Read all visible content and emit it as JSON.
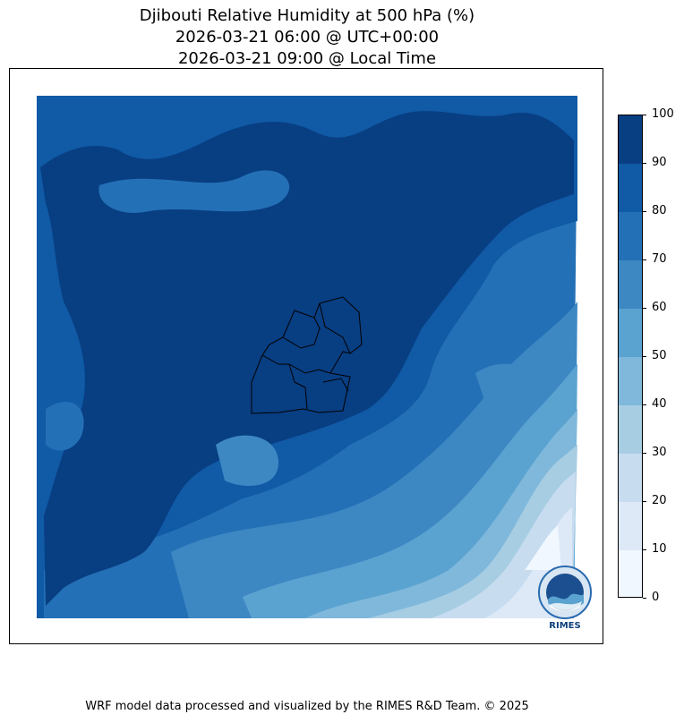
{
  "title": {
    "line1": "Djibouti Relative Humidity at 500 hPa (%)",
    "line2": "2026-03-21 06:00 @ UTC+00:00",
    "line3": "2026-03-21 09:00 @ Local Time"
  },
  "colorbar": {
    "ticks": [
      "0",
      "10",
      "20",
      "30",
      "40",
      "50",
      "60",
      "70",
      "80",
      "90",
      "100"
    ],
    "colors": [
      "#f0f7fe",
      "#dde9f7",
      "#c8dcf0",
      "#a7cde3",
      "#7fb8db",
      "#5aa2d0",
      "#3d88c3",
      "#2470b6",
      "#105aa6",
      "#083e82"
    ]
  },
  "footer": "WRF model data processed and visualized by the RIMES R&D Team. © 2025",
  "logo": {
    "text": "RIMES"
  }
}
